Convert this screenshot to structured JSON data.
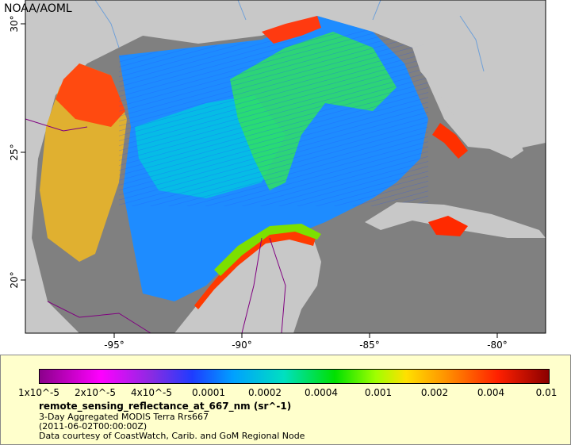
{
  "credit": "NOAA/AOML",
  "axes": {
    "lon_ticks": [
      "-95°",
      "-90°",
      "-85°",
      "-80°"
    ],
    "lat_ticks": [
      "30°",
      "25°",
      "20°"
    ]
  },
  "colorbar": {
    "tick_labels": [
      "1x10^-5",
      "2x10^-5",
      "4x10^-5",
      "0.0001",
      "0.0002",
      "0.0004",
      "0.001",
      "0.002",
      "0.004",
      "0.01"
    ]
  },
  "legend": {
    "variable": "remote_sensing_reflectance_at_667_nm (sr^-1)",
    "line1": "3-Day Aggregated MODIS Terra Rrs667",
    "line2": "(2011-06-02T00:00:00Z)",
    "line3": "Data courtesy of CoastWatch, Carib. and GoM Regional Node"
  },
  "colors": {
    "land": "#c8c8c8",
    "no_data": "#808080",
    "borders": "#800080",
    "rivers": "#6fa0d8",
    "legend_bg": "#ffffcc"
  }
}
